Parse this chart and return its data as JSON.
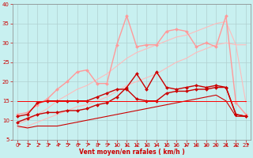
{
  "xlabel": "Vent moyen/en rafales ( km/h )",
  "background_color": "#c8f0f0",
  "grid_color": "#b0d0d0",
  "xlim": [
    -0.5,
    23.5
  ],
  "ylim": [
    5,
    40
  ],
  "yticks": [
    5,
    10,
    15,
    20,
    25,
    30,
    35,
    40
  ],
  "xticks": [
    0,
    1,
    2,
    3,
    4,
    5,
    6,
    7,
    8,
    9,
    10,
    11,
    12,
    13,
    14,
    15,
    16,
    17,
    18,
    19,
    20,
    21,
    22,
    23
  ],
  "series": [
    {
      "x": [
        0,
        1,
        2,
        3,
        4,
        5,
        6,
        7,
        8,
        9,
        10,
        11,
        12,
        13,
        14,
        15,
        16,
        17,
        18,
        19,
        20,
        21,
        22,
        23
      ],
      "y": [
        8.0,
        8.5,
        9.5,
        10.5,
        11.5,
        12.5,
        13.5,
        14.0,
        15.0,
        16.0,
        17.5,
        19.0,
        20.0,
        21.0,
        22.0,
        23.5,
        25.0,
        26.0,
        27.5,
        28.5,
        29.5,
        30.0,
        29.5,
        29.5
      ],
      "color": "#ffbbbb",
      "lw": 0.8,
      "marker": null,
      "ms": 0
    },
    {
      "x": [
        0,
        1,
        2,
        3,
        4,
        5,
        6,
        7,
        8,
        9,
        10,
        11,
        12,
        13,
        14,
        15,
        16,
        17,
        18,
        19,
        20,
        21,
        22,
        23
      ],
      "y": [
        9.0,
        10.0,
        11.5,
        13.0,
        15.0,
        16.5,
        18.0,
        19.0,
        20.5,
        22.0,
        24.0,
        26.0,
        27.5,
        28.5,
        29.5,
        30.5,
        31.5,
        32.0,
        33.0,
        34.0,
        35.0,
        35.5,
        29.5,
        14.5
      ],
      "color": "#ffbbbb",
      "lw": 0.8,
      "marker": null,
      "ms": 0
    },
    {
      "x": [
        0,
        1,
        2,
        3,
        4,
        5,
        6,
        7,
        8,
        9,
        10,
        11,
        12,
        13,
        14,
        15,
        16,
        17,
        18,
        19,
        20,
        21,
        22,
        23
      ],
      "y": [
        11.5,
        12.0,
        14.0,
        15.5,
        18.0,
        20.0,
        22.5,
        23.0,
        19.5,
        19.5,
        29.5,
        37.0,
        29.0,
        29.5,
        29.5,
        33.0,
        33.5,
        33.0,
        29.0,
        30.0,
        29.0,
        37.0,
        14.5,
        11.5
      ],
      "color": "#ff9999",
      "lw": 1.0,
      "marker": "D",
      "ms": 2.0
    },
    {
      "x": [
        0,
        1,
        2,
        3,
        4,
        5,
        6,
        7,
        8,
        9,
        10,
        11,
        12,
        13,
        14,
        15,
        16,
        17,
        18,
        19,
        20,
        21,
        22,
        23
      ],
      "y": [
        11.0,
        11.5,
        14.5,
        15.0,
        15.0,
        15.0,
        15.0,
        15.0,
        16.0,
        17.0,
        18.0,
        18.0,
        15.5,
        15.0,
        15.0,
        17.0,
        17.5,
        17.5,
        18.0,
        18.0,
        18.5,
        18.5,
        11.5,
        11.0
      ],
      "color": "#cc0000",
      "lw": 1.0,
      "marker": "D",
      "ms": 2.0
    },
    {
      "x": [
        0,
        1,
        2,
        3,
        4,
        5,
        6,
        7,
        8,
        9,
        10,
        11,
        12,
        13,
        14,
        15,
        16,
        17,
        18,
        19,
        20,
        21,
        22,
        23
      ],
      "y": [
        9.5,
        10.5,
        11.5,
        12.0,
        12.0,
        12.5,
        12.5,
        13.0,
        14.0,
        14.5,
        16.0,
        18.5,
        22.0,
        18.0,
        22.5,
        18.5,
        18.0,
        18.5,
        19.0,
        18.5,
        19.0,
        18.5,
        11.5,
        11.0
      ],
      "color": "#cc0000",
      "lw": 1.0,
      "marker": "D",
      "ms": 2.0
    },
    {
      "x": [
        0,
        1,
        2,
        3,
        4,
        5,
        6,
        7,
        8,
        9,
        10,
        11,
        12,
        13,
        14,
        15,
        16,
        17,
        18,
        19,
        20,
        21,
        22,
        23
      ],
      "y": [
        8.5,
        8.0,
        8.5,
        8.5,
        8.5,
        9.0,
        9.5,
        10.0,
        10.5,
        11.0,
        11.5,
        12.0,
        12.5,
        13.0,
        13.5,
        14.0,
        14.5,
        15.0,
        15.5,
        16.0,
        16.5,
        15.0,
        11.0,
        11.0
      ],
      "color": "#cc0000",
      "lw": 0.8,
      "marker": null,
      "ms": 0
    },
    {
      "x": [
        0,
        1,
        2,
        3,
        4,
        5,
        6,
        7,
        8,
        9,
        10,
        11,
        12,
        13,
        14,
        15,
        16,
        17,
        18,
        19,
        20,
        21,
        22,
        23
      ],
      "y": [
        15.0,
        15.0,
        15.0,
        15.0,
        15.0,
        15.0,
        15.0,
        15.0,
        15.0,
        15.0,
        15.0,
        15.0,
        15.0,
        15.0,
        15.0,
        15.0,
        15.0,
        15.0,
        15.0,
        15.0,
        15.0,
        15.0,
        15.0,
        15.0
      ],
      "color": "#ff0000",
      "lw": 0.7,
      "marker": null,
      "ms": 0
    }
  ],
  "arrow_directions": [
    1,
    1,
    1,
    1,
    1,
    1,
    1,
    1,
    1,
    1,
    -1,
    -1,
    -1,
    -1,
    -1,
    -1,
    -1,
    -1,
    -1,
    -1,
    -1,
    -1,
    -1,
    1
  ],
  "arrow_color": "#cc0000"
}
